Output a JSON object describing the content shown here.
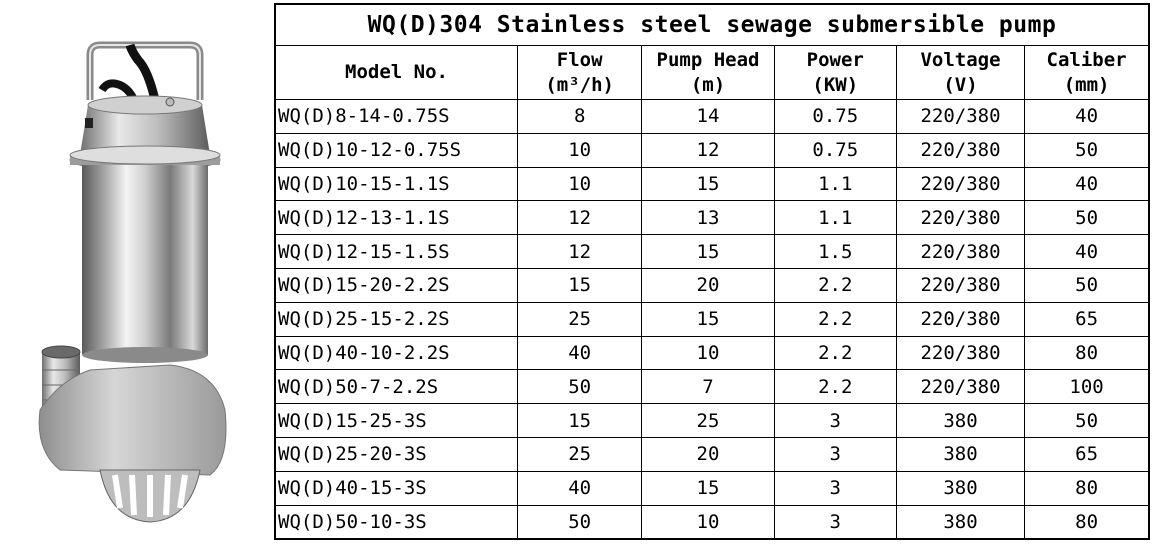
{
  "title": "WQ(D)304 Stainless steel sewage submersible pump",
  "headers": {
    "model": "Model No.",
    "flow": "Flow",
    "flow_unit": "(m³/h)",
    "head": "Pump Head",
    "head_unit": "(m)",
    "power": "Power",
    "power_unit": "(KW)",
    "voltage": "Voltage",
    "voltage_unit": "(V)",
    "caliber": "Caliber",
    "caliber_unit": "(mm)"
  },
  "rows": [
    {
      "model": "WQ(D)8-14-0.75S",
      "flow": "8",
      "head": "14",
      "power": "0.75",
      "voltage": "220/380",
      "caliber": "40"
    },
    {
      "model": "WQ(D)10-12-0.75S",
      "flow": "10",
      "head": "12",
      "power": "0.75",
      "voltage": "220/380",
      "caliber": "50"
    },
    {
      "model": "WQ(D)10-15-1.1S",
      "flow": "10",
      "head": "15",
      "power": "1.1",
      "voltage": "220/380",
      "caliber": "40"
    },
    {
      "model": "WQ(D)12-13-1.1S",
      "flow": "12",
      "head": "13",
      "power": "1.1",
      "voltage": "220/380",
      "caliber": "50"
    },
    {
      "model": "WQ(D)12-15-1.5S",
      "flow": "12",
      "head": "15",
      "power": "1.5",
      "voltage": "220/380",
      "caliber": "40"
    },
    {
      "model": "WQ(D)15-20-2.2S",
      "flow": "15",
      "head": "20",
      "power": "2.2",
      "voltage": "220/380",
      "caliber": "50"
    },
    {
      "model": "WQ(D)25-15-2.2S",
      "flow": "25",
      "head": "15",
      "power": "2.2",
      "voltage": "220/380",
      "caliber": "65"
    },
    {
      "model": "WQ(D)40-10-2.2S",
      "flow": "40",
      "head": "10",
      "power": "2.2",
      "voltage": "220/380",
      "caliber": "80"
    },
    {
      "model": "WQ(D)50-7-2.2S",
      "flow": "50",
      "head": "7",
      "power": "2.2",
      "voltage": "220/380",
      "caliber": "100"
    },
    {
      "model": "WQ(D)15-25-3S",
      "flow": "15",
      "head": "25",
      "power": "3",
      "voltage": "380",
      "caliber": "50"
    },
    {
      "model": "WQ(D)25-20-3S",
      "flow": "25",
      "head": "20",
      "power": "3",
      "voltage": "380",
      "caliber": "65"
    },
    {
      "model": "WQ(D)40-15-3S",
      "flow": "40",
      "head": "15",
      "power": "3",
      "voltage": "380",
      "caliber": "80"
    },
    {
      "model": "WQ(D)50-10-3S",
      "flow": "50",
      "head": "10",
      "power": "3",
      "voltage": "380",
      "caliber": "80"
    }
  ],
  "colors": {
    "steel_light": "#f2f2f2",
    "steel_mid": "#a9a9a9",
    "steel_dark": "#4a4a4a",
    "cable": "#111111"
  }
}
